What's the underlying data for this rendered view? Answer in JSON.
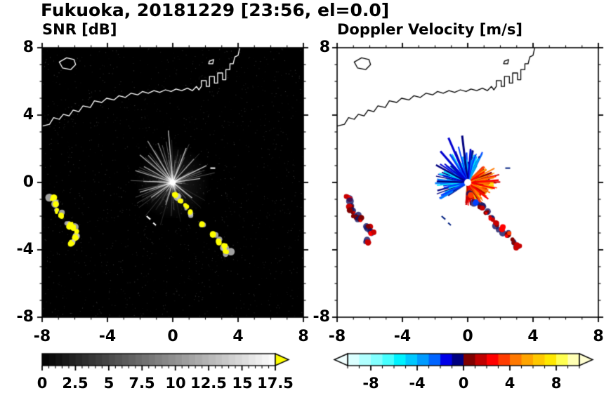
{
  "header": {
    "title": "Fukuoka, 20181229 [23:56, el=0.0]"
  },
  "axes": {
    "xlim": [
      -8,
      8
    ],
    "ylim": [
      -8,
      8
    ],
    "major_ticks": [
      -8,
      -4,
      0,
      4,
      8
    ],
    "minor_step": 1,
    "left_y_labels": [
      "8",
      "4",
      "0",
      "-4",
      "-8"
    ],
    "left_x_labels": [
      "-8",
      "-4",
      "0",
      "4",
      "8"
    ],
    "right_y_labels": [
      "8",
      "-8"
    ],
    "right_x_labels": [
      "-8",
      "-4",
      "0",
      "4",
      "8"
    ]
  },
  "colorbars": {
    "snr": {
      "min": 0,
      "max": 17.5,
      "major_step": 2.5,
      "minor_step": 0.5,
      "labels": [
        "0",
        "2.5",
        "5",
        "7.5",
        "10",
        "12.5",
        "15",
        "17.5"
      ],
      "gradient": [
        "#000000",
        "#ffffff"
      ],
      "over_arrow": "#ffff00"
    },
    "vel": {
      "min": -10,
      "max": 10,
      "major_step": 4,
      "minor_step": 1,
      "labels": [
        "-8",
        "-4",
        "0",
        "4",
        "8"
      ],
      "palette": [
        "#dbffff",
        "#b0ffff",
        "#82ffff",
        "#46ffff",
        "#00f2ff",
        "#00c8ff",
        "#009bff",
        "#0064ff",
        "#0000e8",
        "#000080",
        "#800000",
        "#c00000",
        "#ff0000",
        "#ff3c00",
        "#ff7800",
        "#ffa500",
        "#ffc800",
        "#ffe800",
        "#ffff50",
        "#ffffb4"
      ],
      "under_arrow": "#f2ffff",
      "over_arrow": "#ffffd2"
    }
  },
  "coastline": {
    "main": [
      [
        -8,
        3.35
      ],
      [
        -7.55,
        3.45
      ],
      [
        -7.3,
        3.85
      ],
      [
        -6.95,
        3.75
      ],
      [
        -6.7,
        4.05
      ],
      [
        -6.35,
        3.95
      ],
      [
        -6.1,
        4.3
      ],
      [
        -5.75,
        4.2
      ],
      [
        -5.5,
        4.55
      ],
      [
        -5.05,
        4.45
      ],
      [
        -4.8,
        4.85
      ],
      [
        -4.35,
        4.75
      ],
      [
        -4.05,
        5.0
      ],
      [
        -3.6,
        4.9
      ],
      [
        -3.3,
        5.15
      ],
      [
        -2.9,
        5.05
      ],
      [
        -2.55,
        5.3
      ],
      [
        -2.15,
        5.2
      ],
      [
        -1.85,
        5.4
      ],
      [
        -1.5,
        5.3
      ],
      [
        -1.15,
        5.45
      ],
      [
        -0.8,
        5.35
      ],
      [
        -0.45,
        5.5
      ],
      [
        -0.1,
        5.4
      ],
      [
        0.2,
        5.55
      ],
      [
        0.55,
        5.45
      ],
      [
        0.9,
        5.6
      ],
      [
        1.2,
        5.45
      ],
      [
        1.45,
        5.7
      ],
      [
        1.6,
        5.5
      ],
      [
        1.75,
        5.7
      ],
      [
        1.75,
        6.05
      ],
      [
        2.05,
        6.05
      ],
      [
        2.05,
        5.7
      ],
      [
        2.25,
        5.7
      ],
      [
        2.25,
        6.3
      ],
      [
        2.55,
        6.3
      ],
      [
        2.55,
        5.9
      ],
      [
        2.75,
        5.9
      ],
      [
        2.75,
        6.5
      ],
      [
        3.05,
        6.5
      ],
      [
        3.05,
        6.1
      ],
      [
        3.25,
        6.1
      ],
      [
        3.25,
        6.7
      ],
      [
        3.5,
        6.7
      ],
      [
        3.5,
        7.05
      ],
      [
        3.7,
        7.05
      ],
      [
        3.8,
        7.45
      ],
      [
        4.0,
        7.55
      ],
      [
        4.1,
        8.0
      ]
    ],
    "island": [
      [
        -6.95,
        7.15
      ],
      [
        -6.5,
        7.4
      ],
      [
        -6.05,
        7.3
      ],
      [
        -5.95,
        7.0
      ],
      [
        -6.25,
        6.7
      ],
      [
        -6.75,
        6.8
      ]
    ],
    "islet": [
      [
        2.25,
        7.2
      ],
      [
        2.5,
        7.3
      ],
      [
        2.45,
        7.05
      ],
      [
        2.2,
        7.05
      ]
    ]
  },
  "chart_data": [
    {
      "type": "heatmap",
      "name": "snr",
      "title": "SNR [dB]",
      "units": "dB",
      "xlim": [
        -8,
        8
      ],
      "ylim": [
        -8,
        8
      ],
      "value_range": [
        0,
        17.5
      ],
      "background": "#000000",
      "coast_color": "#ffffff",
      "radar_center": [
        0,
        0
      ],
      "clutter": {
        "desc": "radial ground-clutter streaks around radar site",
        "color": "#ffffff",
        "max_radius": 3.2,
        "spokes": [
          [
            8,
            1.7
          ],
          [
            26,
            2.3
          ],
          [
            47,
            1.9
          ],
          [
            68,
            2.2
          ],
          [
            95,
            3.1
          ],
          [
            111,
            2.5
          ],
          [
            122,
            2.9
          ],
          [
            133,
            2.2
          ],
          [
            141,
            2.6
          ],
          [
            152,
            2.0
          ],
          [
            163,
            2.4
          ],
          [
            178,
            1.8
          ],
          [
            196,
            2.1
          ],
          [
            214,
            1.6
          ],
          [
            252,
            1.4
          ],
          [
            287,
            1.2
          ],
          [
            322,
            1.5
          ]
        ]
      },
      "echo_features": [
        {
          "name": "southeast-precip-band",
          "colors": [
            "#ffff00"
          ],
          "fringe": "#c8c8c8",
          "path": [
            [
              0.15,
              -0.75
            ],
            [
              0.5,
              -1.1
            ],
            [
              0.85,
              -1.45
            ],
            [
              1.15,
              -1.8
            ],
            [
              1.45,
              -2.15
            ],
            [
              1.8,
              -2.5
            ],
            [
              2.1,
              -2.8
            ],
            [
              2.45,
              -3.1
            ],
            [
              2.8,
              -3.5
            ],
            [
              3.1,
              -3.8
            ],
            [
              3.35,
              -4.15
            ]
          ]
        },
        {
          "name": "west-arc-north",
          "colors": [
            "#ffff00"
          ],
          "fringe": "#c8c8c8",
          "path": [
            [
              -7.35,
              -0.95
            ],
            [
              -7.2,
              -1.3
            ],
            [
              -7.05,
              -1.65
            ],
            [
              -6.85,
              -1.95
            ],
            [
              -6.6,
              -2.15
            ]
          ]
        },
        {
          "name": "west-arc-south",
          "colors": [
            "#ffff00"
          ],
          "fringe": "#c8c8c8",
          "path": [
            [
              -6.35,
              -2.45
            ],
            [
              -6.1,
              -2.7
            ],
            [
              -5.9,
              -3.0
            ],
            [
              -5.95,
              -3.3
            ],
            [
              -6.15,
              -3.55
            ]
          ]
        }
      ],
      "specks": [
        [
          -1.6,
          -2.0,
          -40,
          0.3
        ],
        [
          -1.2,
          -2.4,
          -40,
          0.22
        ],
        [
          2.3,
          0.85,
          0,
          0.3
        ]
      ],
      "speck_color": "#ffffff"
    },
    {
      "type": "heatmap",
      "name": "velocity",
      "title": "Doppler Velocity [m/s]",
      "units": "m/s",
      "xlim": [
        -8,
        8
      ],
      "ylim": [
        -8,
        8
      ],
      "value_range": [
        -10,
        10
      ],
      "background": "#ffffff",
      "coast_color": "#000000",
      "radar_center": [
        0,
        0
      ],
      "fan": {
        "desc": "doppler velocity fan: blues toward (up/left), reds-oranges away (down/right)",
        "toward_colors": [
          "#000080",
          "#0000d0",
          "#0040ff",
          "#0080ff",
          "#00b4ff",
          "#00e6ff"
        ],
        "away_colors": [
          "#800000",
          "#c80000",
          "#ff0000",
          "#ff4600",
          "#ff7800",
          "#ffa000",
          "#ffd200"
        ],
        "toward_angles": [
          60,
          215
        ],
        "away_angles": [
          -95,
          45
        ],
        "toward_spikes": [
          [
            75,
            1.6,
            2
          ],
          [
            85,
            2.0,
            2.5
          ],
          [
            97,
            2.8,
            3
          ],
          [
            105,
            2.2,
            2
          ],
          [
            114,
            2.9,
            3
          ],
          [
            123,
            2.0,
            2.5
          ],
          [
            132,
            2.5,
            3
          ],
          [
            142,
            1.8,
            2
          ],
          [
            152,
            2.2,
            2.5
          ],
          [
            165,
            1.6,
            2
          ],
          [
            178,
            1.9,
            2.5
          ],
          [
            192,
            1.5,
            2
          ],
          [
            205,
            1.8,
            2.5
          ]
        ],
        "away_spikes": [
          [
            4,
            1.9,
            2.5
          ],
          [
            -12,
            1.7,
            2
          ],
          [
            -24,
            1.5,
            2
          ],
          [
            -38,
            1.6,
            2
          ],
          [
            -55,
            1.5,
            2
          ],
          [
            -70,
            1.35,
            2
          ],
          [
            18,
            1.6,
            2
          ],
          [
            32,
            1.2,
            2
          ]
        ]
      },
      "echo_features": [
        {
          "name": "southeast-precip-band",
          "colors": [
            "#c80000",
            "#ff0000",
            "#800000",
            "#ff3c00",
            "#0040ff"
          ],
          "fringe": "#141464",
          "path": [
            [
              0.15,
              -0.75
            ],
            [
              0.5,
              -1.1
            ],
            [
              0.85,
              -1.45
            ],
            [
              1.15,
              -1.8
            ],
            [
              1.45,
              -2.15
            ],
            [
              1.8,
              -2.5
            ],
            [
              2.1,
              -2.8
            ],
            [
              2.45,
              -3.1
            ],
            [
              2.8,
              -3.5
            ],
            [
              3.1,
              -3.8
            ],
            [
              3.35,
              -4.15
            ]
          ]
        },
        {
          "name": "west-arc-north",
          "colors": [
            "#c80000",
            "#ff0000",
            "#800000"
          ],
          "fringe": "#141464",
          "path": [
            [
              -7.35,
              -0.95
            ],
            [
              -7.2,
              -1.3
            ],
            [
              -7.05,
              -1.65
            ],
            [
              -6.85,
              -1.95
            ],
            [
              -6.6,
              -2.15
            ]
          ]
        },
        {
          "name": "west-arc-south",
          "colors": [
            "#c80000",
            "#ff0000",
            "#800000"
          ],
          "fringe": "#141464",
          "path": [
            [
              -6.35,
              -2.45
            ],
            [
              -6.1,
              -2.7
            ],
            [
              -5.9,
              -3.0
            ],
            [
              -5.95,
              -3.3
            ],
            [
              -6.15,
              -3.55
            ]
          ]
        }
      ],
      "specks": [
        [
          -1.6,
          -2.0,
          -40,
          0.3
        ],
        [
          -1.2,
          -2.4,
          -40,
          0.22
        ],
        [
          2.3,
          0.85,
          0,
          0.3
        ]
      ],
      "speck_color": "#002080"
    }
  ]
}
